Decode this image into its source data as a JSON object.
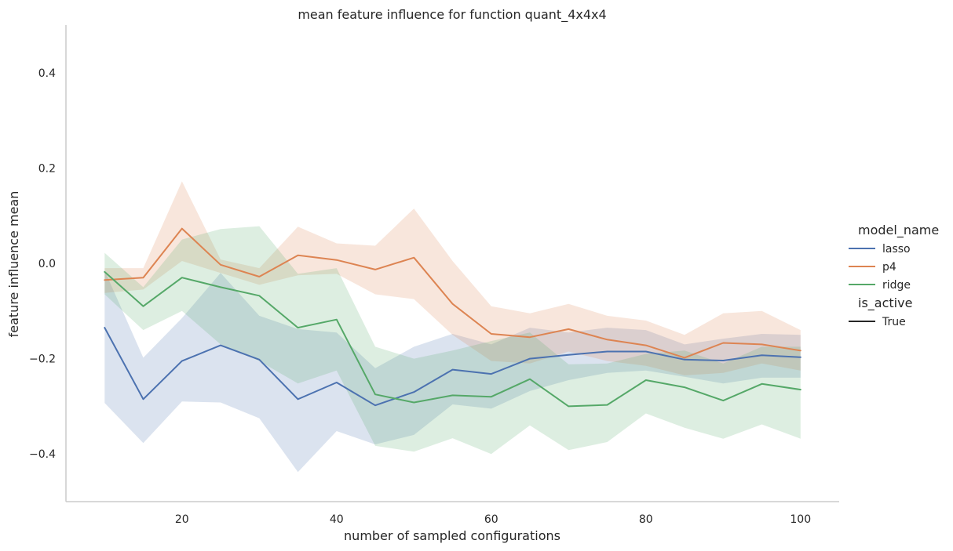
{
  "chart_data": {
    "type": "line",
    "title": "mean feature influence for function quant_4x4x4",
    "xlabel": "number of sampled configurations",
    "ylabel": "feature influence mean",
    "xlim": [
      5,
      105
    ],
    "ylim": [
      -0.5,
      0.5
    ],
    "x_ticks": [
      20,
      40,
      60,
      80,
      100
    ],
    "y_ticks": [
      -0.4,
      -0.2,
      0.0,
      0.2,
      0.4
    ],
    "x_tick_labels": [
      "20",
      "40",
      "60",
      "80",
      "100"
    ],
    "y_tick_labels": [
      "−0.4",
      "−0.2",
      "0.0",
      "0.2",
      "0.4"
    ],
    "grid": false,
    "legend_position": "right",
    "legend_title": "model_name",
    "style_legend_title": "is_active",
    "style_legend_entry": "True",
    "x": [
      10,
      15,
      20,
      25,
      30,
      35,
      40,
      45,
      50,
      55,
      60,
      65,
      70,
      75,
      80,
      85,
      90,
      95,
      100
    ],
    "series": [
      {
        "name": "lasso",
        "color": "#4c72b0",
        "values": [
          -0.135,
          -0.285,
          -0.205,
          -0.172,
          -0.202,
          -0.285,
          -0.25,
          -0.298,
          -0.27,
          -0.223,
          -0.232,
          -0.2,
          -0.192,
          -0.185,
          -0.185,
          -0.202,
          -0.204,
          -0.193,
          -0.197
        ],
        "lower": [
          -0.293,
          -0.377,
          -0.29,
          -0.292,
          -0.325,
          -0.438,
          -0.352,
          -0.38,
          -0.36,
          -0.296,
          -0.305,
          -0.268,
          -0.245,
          -0.23,
          -0.225,
          -0.238,
          -0.252,
          -0.24,
          -0.24
        ],
        "upper": [
          -0.015,
          -0.198,
          -0.115,
          -0.02,
          -0.11,
          -0.138,
          -0.145,
          -0.22,
          -0.175,
          -0.148,
          -0.17,
          -0.135,
          -0.145,
          -0.135,
          -0.14,
          -0.17,
          -0.158,
          -0.148,
          -0.15
        ]
      },
      {
        "name": "p4",
        "color": "#dd8452",
        "values": [
          -0.035,
          -0.03,
          0.073,
          -0.003,
          -0.028,
          0.017,
          0.007,
          -0.013,
          0.012,
          -0.085,
          -0.148,
          -0.155,
          -0.138,
          -0.16,
          -0.172,
          -0.198,
          -0.167,
          -0.17,
          -0.183
        ],
        "lower": [
          -0.062,
          -0.055,
          0.005,
          -0.02,
          -0.045,
          -0.025,
          -0.022,
          -0.065,
          -0.075,
          -0.15,
          -0.205,
          -0.21,
          -0.185,
          -0.205,
          -0.215,
          -0.235,
          -0.23,
          -0.21,
          -0.225
        ],
        "upper": [
          -0.01,
          -0.01,
          0.172,
          0.008,
          -0.01,
          0.077,
          0.042,
          0.037,
          0.115,
          0.005,
          -0.09,
          -0.105,
          -0.085,
          -0.11,
          -0.12,
          -0.15,
          -0.105,
          -0.1,
          -0.14
        ]
      },
      {
        "name": "ridge",
        "color": "#55a868",
        "values": [
          -0.018,
          -0.09,
          -0.03,
          -0.05,
          -0.068,
          -0.135,
          -0.118,
          -0.275,
          -0.292,
          -0.277,
          -0.28,
          -0.243,
          -0.3,
          -0.297,
          -0.245,
          -0.26,
          -0.288,
          -0.253,
          -0.265
        ],
        "lower": [
          -0.065,
          -0.14,
          -0.1,
          -0.17,
          -0.205,
          -0.252,
          -0.225,
          -0.383,
          -0.395,
          -0.367,
          -0.4,
          -0.34,
          -0.392,
          -0.375,
          -0.315,
          -0.345,
          -0.368,
          -0.338,
          -0.368
        ],
        "upper": [
          0.022,
          -0.05,
          0.05,
          0.072,
          0.078,
          -0.022,
          -0.01,
          -0.175,
          -0.2,
          -0.183,
          -0.163,
          -0.145,
          -0.212,
          -0.21,
          -0.19,
          -0.183,
          -0.21,
          -0.175,
          -0.175
        ]
      }
    ]
  }
}
